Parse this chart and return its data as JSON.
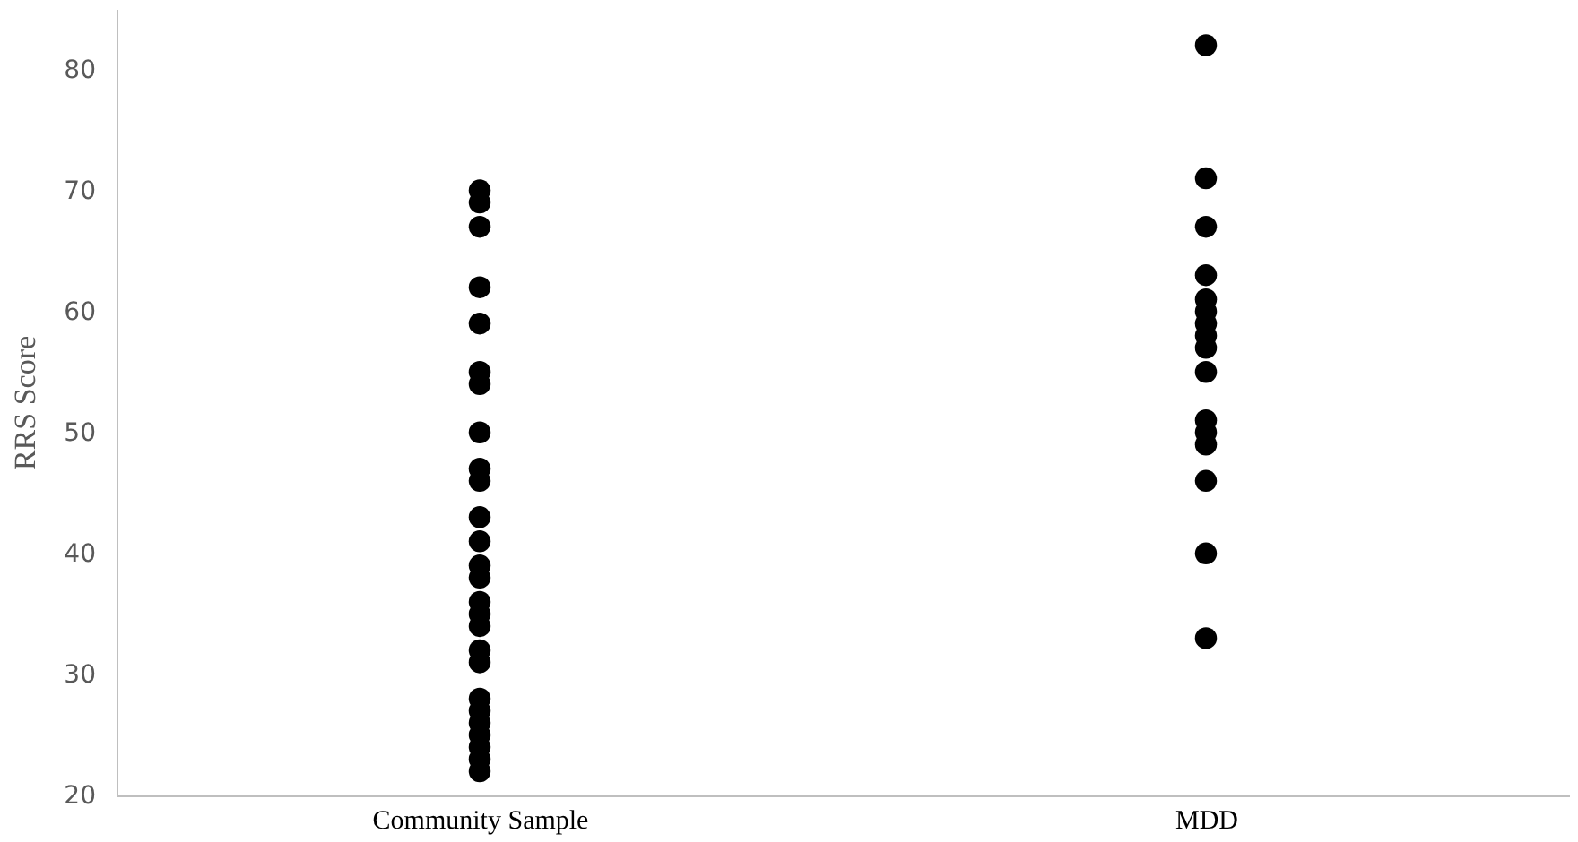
{
  "chart_data": {
    "type": "scatter",
    "ylabel": "RRS Score",
    "categories": [
      "Community Sample",
      "MDD"
    ],
    "series": [
      {
        "x": [
          "Community Sample",
          "Community Sample",
          "Community Sample",
          "Community Sample",
          "Community Sample",
          "Community Sample",
          "Community Sample",
          "Community Sample",
          "Community Sample",
          "Community Sample",
          "Community Sample",
          "Community Sample",
          "Community Sample",
          "Community Sample",
          "Community Sample",
          "Community Sample",
          "Community Sample",
          "Community Sample",
          "Community Sample",
          "Community Sample",
          "Community Sample",
          "Community Sample",
          "Community Sample",
          "Community Sample",
          "Community Sample",
          "Community Sample"
        ],
        "values": [
          70,
          69,
          67,
          62,
          59,
          55,
          54,
          50,
          47,
          46,
          43,
          41,
          39,
          38,
          36,
          35,
          34,
          32,
          31,
          28,
          27,
          26,
          25,
          24,
          23,
          22
        ],
        "color": "#000000"
      },
      {
        "x": [
          "MDD",
          "MDD",
          "MDD",
          "MDD",
          "MDD",
          "MDD",
          "MDD",
          "MDD",
          "MDD",
          "MDD",
          "MDD",
          "MDD",
          "MDD",
          "MDD",
          "MDD",
          "MDD"
        ],
        "values": [
          82,
          71,
          67,
          63,
          61,
          60,
          59,
          58,
          57,
          55,
          51,
          50,
          49,
          46,
          40,
          33
        ],
        "color": "#000000"
      }
    ],
    "ylim": [
      20,
      85
    ],
    "yticks": [
      20,
      30,
      40,
      50,
      60,
      70,
      80
    ],
    "grid": false,
    "marker": "circle"
  }
}
